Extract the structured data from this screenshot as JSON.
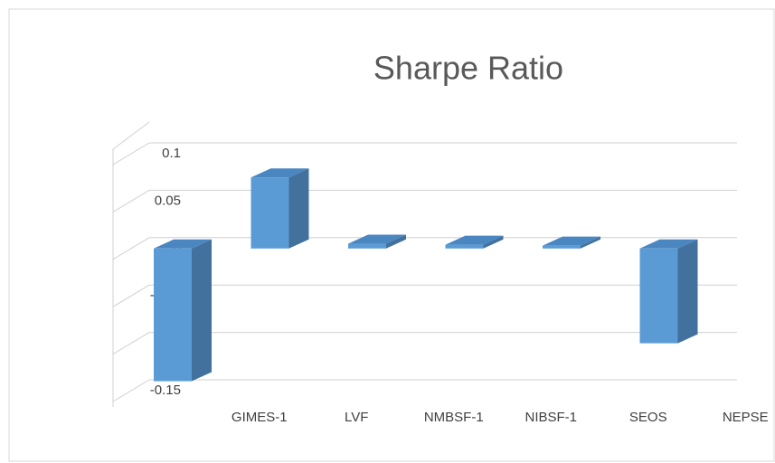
{
  "chart_data": {
    "type": "bar3d",
    "title": "Sharpe Ratio",
    "categories": [
      "GIMES-1",
      "LVF",
      "NMBSF-1",
      "NIBSF-1",
      "SEOS",
      "NEPSE"
    ],
    "values": [
      -0.14,
      0.075,
      0.005,
      0.004,
      0.003,
      -0.1
    ],
    "color": "#5b9bd5",
    "ylim": [
      -0.15,
      0.1
    ],
    "yticks": [
      -0.15,
      -0.1,
      -0.05,
      0,
      0.05,
      0.1
    ],
    "grid": true
  }
}
